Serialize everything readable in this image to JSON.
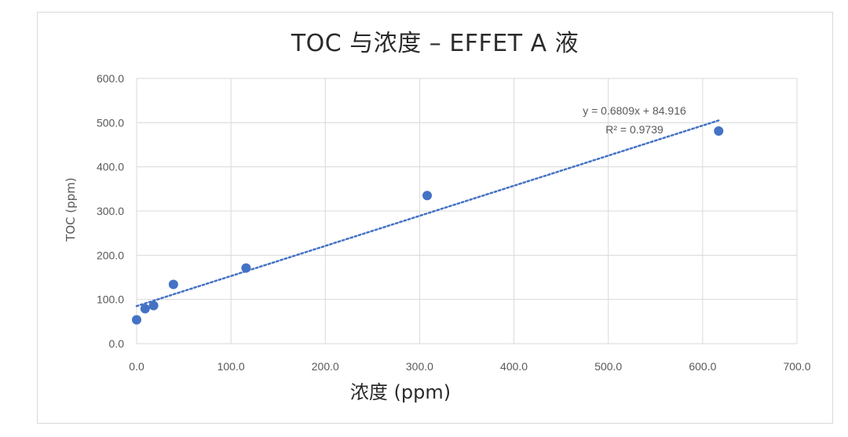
{
  "chart_data": {
    "type": "scatter",
    "title": "TOC 与浓度 – EFFET A 液",
    "xlabel": "浓度 (ppm)",
    "ylabel": "TOC (ppm)",
    "xlim": [
      0,
      700
    ],
    "ylim": [
      0,
      600
    ],
    "x_ticks": [
      "0.0",
      "100.0",
      "200.0",
      "300.0",
      "400.0",
      "500.0",
      "600.0",
      "700.0"
    ],
    "y_ticks": [
      "0.0",
      "100.0",
      "200.0",
      "300.0",
      "400.0",
      "500.0",
      "600.0"
    ],
    "grid": true,
    "series": [
      {
        "points": [
          {
            "x": 0,
            "y": 54
          },
          {
            "x": 9,
            "y": 79
          },
          {
            "x": 18,
            "y": 86
          },
          {
            "x": 39,
            "y": 134
          },
          {
            "x": 116,
            "y": 171
          },
          {
            "x": 308,
            "y": 335
          },
          {
            "x": 617,
            "y": 481
          }
        ],
        "color": "#4472c4"
      }
    ],
    "trendline": {
      "slope": 0.6809,
      "intercept": 84.916,
      "x_range": [
        0,
        617
      ],
      "color": "#4472c4",
      "style": "dotted"
    },
    "annotations": {
      "equation": "y = 0.6809x + 84.916",
      "r_squared": "R² = 0.9739"
    }
  }
}
